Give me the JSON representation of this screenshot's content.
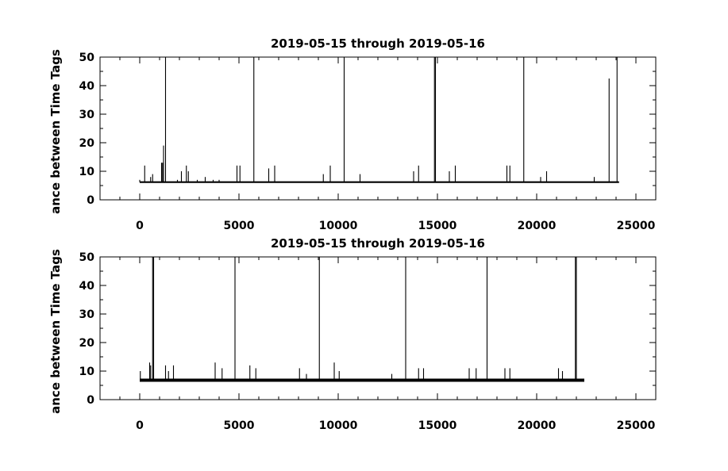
{
  "chart_data": [
    {
      "type": "line",
      "title": "2019-05-15 through 2019-05-16",
      "xlabel": "",
      "ylabel": "ance between Time Tags",
      "xlim": [
        -2000,
        26000
      ],
      "ylim": [
        0,
        50
      ],
      "xticks": [
        0,
        5000,
        10000,
        15000,
        20000,
        25000
      ],
      "yticks": [
        0,
        10,
        20,
        30,
        40,
        50
      ],
      "grid": false,
      "baseline": 6.2,
      "x_end": 24150,
      "spikes": [
        {
          "x": 0,
          "y": 7
        },
        {
          "x": 250,
          "y": 12
        },
        {
          "x": 550,
          "y": 8
        },
        {
          "x": 650,
          "y": 9
        },
        {
          "x": 1100,
          "y": 13
        },
        {
          "x": 1150,
          "y": 13
        },
        {
          "x": 1200,
          "y": 19
        },
        {
          "x": 1300,
          "y": 50
        },
        {
          "x": 1900,
          "y": 7
        },
        {
          "x": 2100,
          "y": 10
        },
        {
          "x": 2350,
          "y": 12
        },
        {
          "x": 2450,
          "y": 10
        },
        {
          "x": 2900,
          "y": 7
        },
        {
          "x": 3300,
          "y": 8
        },
        {
          "x": 3700,
          "y": 7
        },
        {
          "x": 4000,
          "y": 7
        },
        {
          "x": 4900,
          "y": 12
        },
        {
          "x": 5050,
          "y": 12
        },
        {
          "x": 5750,
          "y": 50
        },
        {
          "x": 6500,
          "y": 11
        },
        {
          "x": 6800,
          "y": 12
        },
        {
          "x": 9250,
          "y": 9
        },
        {
          "x": 9600,
          "y": 12
        },
        {
          "x": 10300,
          "y": 50
        },
        {
          "x": 11100,
          "y": 9
        },
        {
          "x": 13800,
          "y": 10
        },
        {
          "x": 14050,
          "y": 12
        },
        {
          "x": 14850,
          "y": 50
        },
        {
          "x": 14900,
          "y": 50
        },
        {
          "x": 15600,
          "y": 10
        },
        {
          "x": 15900,
          "y": 12
        },
        {
          "x": 18500,
          "y": 12
        },
        {
          "x": 18650,
          "y": 12
        },
        {
          "x": 19350,
          "y": 50
        },
        {
          "x": 20200,
          "y": 8
        },
        {
          "x": 20500,
          "y": 10
        },
        {
          "x": 22900,
          "y": 8
        },
        {
          "x": 23650,
          "y": 42.5
        },
        {
          "x": 24050,
          "y": 50
        }
      ]
    },
    {
      "type": "line",
      "title": "2019-05-15 through 2019-05-16",
      "xlabel": "",
      "ylabel": "ance between Time Tags",
      "xlim": [
        -2000,
        26000
      ],
      "ylim": [
        0,
        50
      ],
      "xticks": [
        0,
        5000,
        10000,
        15000,
        20000,
        25000
      ],
      "yticks": [
        0,
        10,
        20,
        30,
        40,
        50
      ],
      "grid": false,
      "baseline": 6.8,
      "x_end": 22400,
      "spikes": [
        {
          "x": 30,
          "y": 10
        },
        {
          "x": 500,
          "y": 13
        },
        {
          "x": 550,
          "y": 12
        },
        {
          "x": 650,
          "y": 50
        },
        {
          "x": 700,
          "y": 50
        },
        {
          "x": 1300,
          "y": 12
        },
        {
          "x": 1450,
          "y": 10
        },
        {
          "x": 1700,
          "y": 12
        },
        {
          "x": 3800,
          "y": 13
        },
        {
          "x": 4150,
          "y": 11
        },
        {
          "x": 4800,
          "y": 50
        },
        {
          "x": 5550,
          "y": 12
        },
        {
          "x": 5850,
          "y": 11
        },
        {
          "x": 8050,
          "y": 11
        },
        {
          "x": 8400,
          "y": 9
        },
        {
          "x": 9050,
          "y": 50
        },
        {
          "x": 9800,
          "y": 13
        },
        {
          "x": 10050,
          "y": 10
        },
        {
          "x": 12700,
          "y": 9
        },
        {
          "x": 13400,
          "y": 50
        },
        {
          "x": 14050,
          "y": 11
        },
        {
          "x": 14300,
          "y": 11
        },
        {
          "x": 16600,
          "y": 11
        },
        {
          "x": 16950,
          "y": 11
        },
        {
          "x": 17500,
          "y": 50
        },
        {
          "x": 18400,
          "y": 11
        },
        {
          "x": 18650,
          "y": 11
        },
        {
          "x": 21100,
          "y": 11
        },
        {
          "x": 21300,
          "y": 10
        },
        {
          "x": 21950,
          "y": 50
        },
        {
          "x": 22000,
          "y": 50
        }
      ]
    }
  ]
}
